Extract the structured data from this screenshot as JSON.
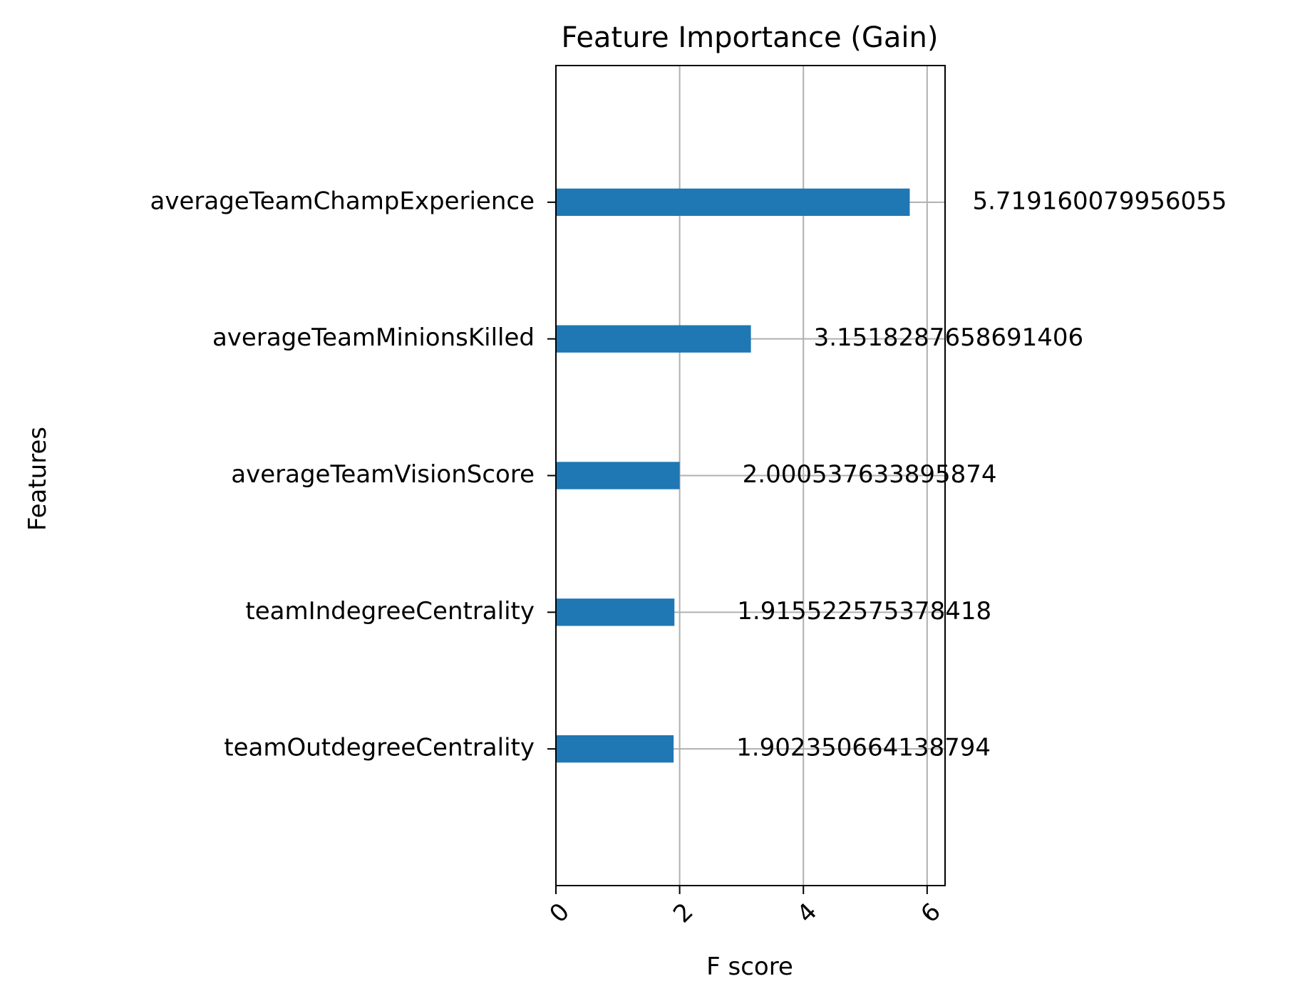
{
  "chart_data": {
    "type": "bar",
    "orientation": "horizontal",
    "title": "Feature Importance (Gain)",
    "xlabel": "F score",
    "ylabel": "Features",
    "categories": [
      "averageTeamChampExperience",
      "averageTeamMinionsKilled",
      "averageTeamVisionScore",
      "teamIndegreeCentrality",
      "teamOutdegreeCentrality"
    ],
    "values": [
      5.719160079956055,
      3.1518287658691406,
      2.000537633895874,
      1.915522575378418,
      1.902350664138794
    ],
    "value_labels": [
      "5.719160079956055",
      "3.1518287658691406",
      "2.000537633895874",
      "1.915522575378418",
      "1.902350664138794"
    ],
    "xlim": [
      0,
      6.29
    ],
    "xticks": [
      0,
      2,
      4,
      6
    ],
    "xtick_labels": [
      "0",
      "2",
      "4",
      "6"
    ],
    "xtick_rotation_deg": -45,
    "grid": true,
    "bar_color": "#1f77b4",
    "grid_color": "#b0b0b0"
  }
}
